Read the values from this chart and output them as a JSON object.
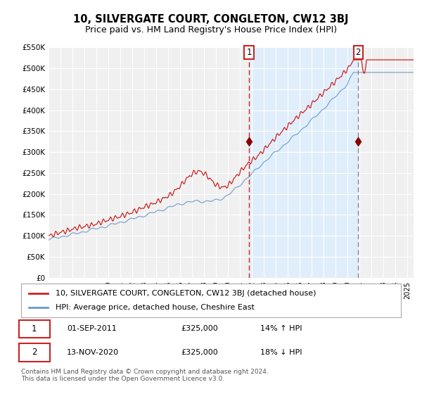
{
  "title": "10, SILVERGATE COURT, CONGLETON, CW12 3BJ",
  "subtitle": "Price paid vs. HM Land Registry's House Price Index (HPI)",
  "ylim": [
    0,
    550000
  ],
  "yticks": [
    0,
    50000,
    100000,
    150000,
    200000,
    250000,
    300000,
    350000,
    400000,
    450000,
    500000,
    550000
  ],
  "ytick_labels": [
    "£0",
    "£50K",
    "£100K",
    "£150K",
    "£200K",
    "£250K",
    "£300K",
    "£350K",
    "£400K",
    "£450K",
    "£500K",
    "£550K"
  ],
  "xlim_start": 1995.0,
  "xlim_end": 2025.5,
  "background_color": "#ffffff",
  "plot_bg_color": "#f0f0f0",
  "grid_color": "#ffffff",
  "red_line_color": "#cc2222",
  "blue_line_color": "#6699cc",
  "shade_color": "#ddeeff",
  "marker_color": "#880000",
  "vline1_color": "#cc2222",
  "vline2_color": "#888899",
  "transaction1_x": 2011.75,
  "transaction1_y": 325000,
  "transaction1_label": "01-SEP-2011",
  "transaction1_price": "£325,000",
  "transaction1_hpi": "14% ↑ HPI",
  "transaction2_x": 2020.87,
  "transaction2_y": 325000,
  "transaction2_label": "13-NOV-2020",
  "transaction2_price": "£325,000",
  "transaction2_hpi": "18% ↓ HPI",
  "legend_label1": "10, SILVERGATE COURT, CONGLETON, CW12 3BJ (detached house)",
  "legend_label2": "HPI: Average price, detached house, Cheshire East",
  "footer": "Contains HM Land Registry data © Crown copyright and database right 2024.\nThis data is licensed under the Open Government Licence v3.0.",
  "title_fontsize": 10.5,
  "subtitle_fontsize": 9,
  "tick_fontsize": 7.5,
  "legend_fontsize": 8,
  "footer_fontsize": 6.5
}
